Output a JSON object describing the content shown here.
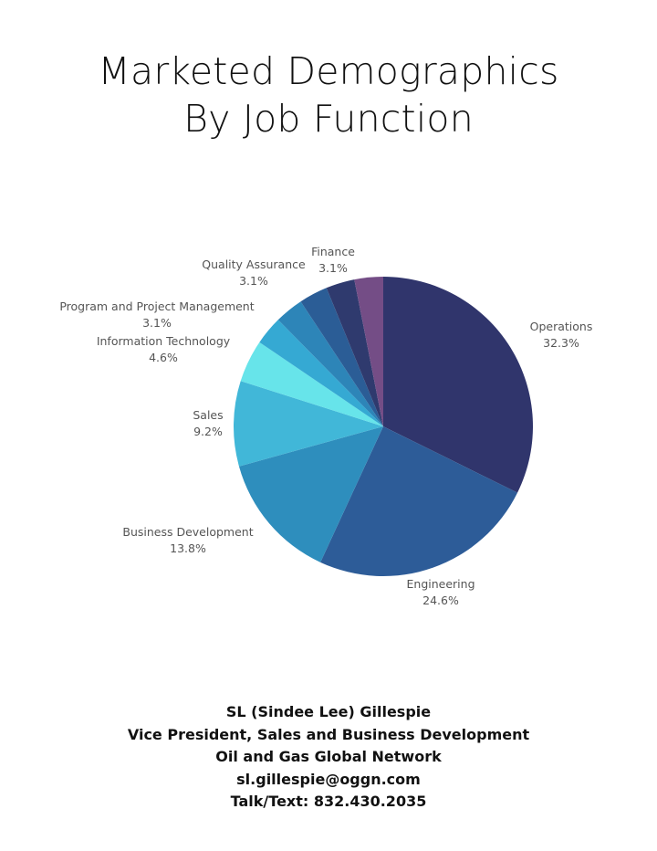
{
  "chart_data": {
    "type": "pie",
    "title": [
      "Marketed Demographics",
      "By Job Function"
    ],
    "slices": [
      {
        "label": "Operations",
        "value": 32.3,
        "display": "32.3%",
        "color": "#30356c"
      },
      {
        "label": "Engineering",
        "value": 24.6,
        "display": "24.6%",
        "color": "#2d5c98"
      },
      {
        "label": "Business Development",
        "value": 13.8,
        "display": "13.8%",
        "color": "#2e8ebd"
      },
      {
        "label": "Sales",
        "value": 9.2,
        "display": "9.2%",
        "color": "#41b7d8"
      },
      {
        "label": "Information Technology",
        "value": 4.6,
        "display": "4.6%",
        "color": "#67e4ea"
      },
      {
        "label": "Program and Project Management",
        "value": 3.1,
        "display": "3.1%",
        "color": "#35a9d3"
      },
      {
        "label": "Quality Assurance",
        "value": 3.1,
        "display": "3.1%",
        "color": "#2d85b8"
      },
      {
        "label": "",
        "value": 3.1,
        "display": "",
        "color": "#2b5d96"
      },
      {
        "label": "Finance",
        "value": 3.1,
        "display": "3.1%",
        "color": "#2f3a6e"
      },
      {
        "label": "",
        "value": 3.1,
        "display": "",
        "color": "#744d86"
      }
    ],
    "legend": "none"
  },
  "footer": {
    "name": "SL (Sindee Lee) Gillespie",
    "position": "Vice President, Sales and Business Development",
    "company": "Oil and Gas Global Network",
    "email": "sl.gillespie@oggn.com",
    "phone": "Talk/Text: 832.430.2035"
  }
}
